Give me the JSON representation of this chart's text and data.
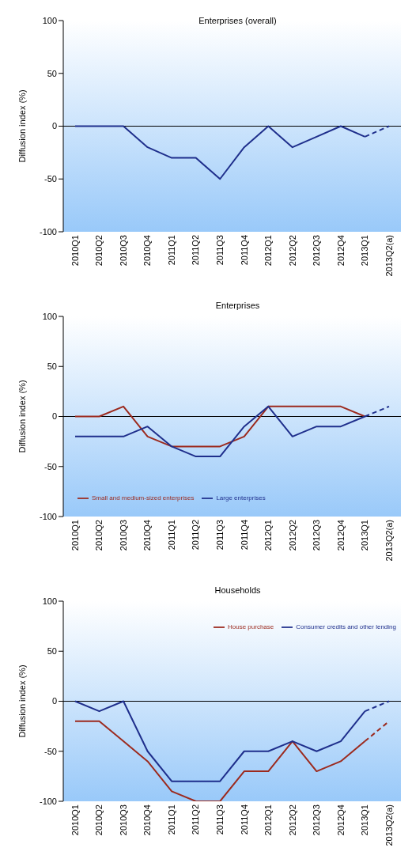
{
  "chart_data": [
    {
      "type": "line",
      "title": "Enterprises (overall)",
      "ylabel": "Diffusion index (%)",
      "categories": [
        "2010Q1",
        "2010Q2",
        "2010Q3",
        "2010Q4",
        "2011Q1",
        "2011Q2",
        "2011Q3",
        "2011Q4",
        "2012Q1",
        "2012Q2",
        "2012Q3",
        "2012Q4",
        "2013Q1",
        "2013Q2(a)"
      ],
      "ylim": [
        -100,
        100
      ],
      "yticks": [
        -100,
        -50,
        0,
        50,
        100
      ],
      "grid": false,
      "legend": false,
      "marker": "none",
      "ref_lines": [
        {
          "axis": "y",
          "value": 0,
          "color": "#000000"
        }
      ],
      "series": [
        {
          "color": "#1f2f8c",
          "line_style": "solid",
          "values": [
            0,
            0,
            0,
            -20,
            -30,
            -30,
            -50,
            -20,
            0,
            -20,
            -10,
            0,
            -10,
            null
          ]
        },
        {
          "color": "#1f2f8c",
          "line_style": "dashed",
          "values": [
            null,
            null,
            null,
            null,
            null,
            null,
            null,
            null,
            null,
            null,
            null,
            null,
            -10,
            0
          ]
        }
      ]
    },
    {
      "type": "line",
      "title": "Enterprises",
      "ylabel": "Diffusion index (%)",
      "categories": [
        "2010Q1",
        "2010Q2",
        "2010Q3",
        "2010Q4",
        "2011Q1",
        "2011Q2",
        "2011Q3",
        "2011Q4",
        "2012Q1",
        "2012Q2",
        "2012Q3",
        "2012Q4",
        "2013Q1",
        "2013Q2(a)"
      ],
      "ylim": [
        -100,
        100
      ],
      "yticks": [
        -100,
        -50,
        0,
        50,
        100
      ],
      "grid": false,
      "legend": "bottom left",
      "marker": "none",
      "ref_lines": [
        {
          "axis": "y",
          "value": 0,
          "color": "#000000"
        }
      ],
      "series": [
        {
          "name": "Small and medium-sized enterprises",
          "color": "#9c2a1e",
          "line_style": "solid",
          "values": [
            0,
            0,
            10,
            -20,
            -30,
            -30,
            -30,
            -20,
            10,
            10,
            10,
            10,
            0,
            null
          ]
        },
        {
          "name": "Large enterprises",
          "color": "#1f2f8c",
          "line_style": "solid",
          "values": [
            -20,
            -20,
            -20,
            -10,
            -30,
            -40,
            -40,
            -10,
            10,
            -20,
            -10,
            -10,
            0,
            null
          ]
        },
        {
          "color": "#1f2f8c",
          "line_style": "dashed",
          "values": [
            null,
            null,
            null,
            null,
            null,
            null,
            null,
            null,
            null,
            null,
            null,
            null,
            0,
            10
          ]
        }
      ]
    },
    {
      "type": "line",
      "title": "Households",
      "ylabel": "Diffusion index (%)",
      "categories": [
        "2010Q1",
        "2010Q2",
        "2010Q3",
        "2010Q4",
        "2011Q1",
        "2011Q2",
        "2011Q3",
        "2011Q4",
        "2012Q1",
        "2012Q2",
        "2012Q3",
        "2012Q4",
        "2013Q1",
        "2013Q2(a)"
      ],
      "ylim": [
        -100,
        100
      ],
      "yticks": [
        -100,
        -50,
        0,
        50,
        100
      ],
      "grid": false,
      "legend": "top right",
      "marker": "none",
      "ref_lines": [
        {
          "axis": "y",
          "value": 0,
          "color": "#000000"
        }
      ],
      "series": [
        {
          "name": "House purchase",
          "color": "#9c2a1e",
          "line_style": "solid",
          "values": [
            -20,
            -20,
            -40,
            -60,
            -90,
            -100,
            -100,
            -70,
            -70,
            -40,
            -70,
            -60,
            -40,
            null
          ]
        },
        {
          "name": "Consumer credits and other lending",
          "color": "#1f2f8c",
          "line_style": "solid",
          "values": [
            0,
            -10,
            0,
            -50,
            -80,
            -80,
            -80,
            -50,
            -50,
            -40,
            -50,
            -40,
            -10,
            null
          ]
        },
        {
          "color": "#9c2a1e",
          "line_style": "dashed",
          "values": [
            null,
            null,
            null,
            null,
            null,
            null,
            null,
            null,
            null,
            null,
            null,
            null,
            -40,
            -20
          ]
        },
        {
          "color": "#1f2f8c",
          "line_style": "dashed",
          "values": [
            null,
            null,
            null,
            null,
            null,
            null,
            null,
            null,
            null,
            null,
            null,
            null,
            -10,
            0
          ]
        }
      ]
    }
  ]
}
